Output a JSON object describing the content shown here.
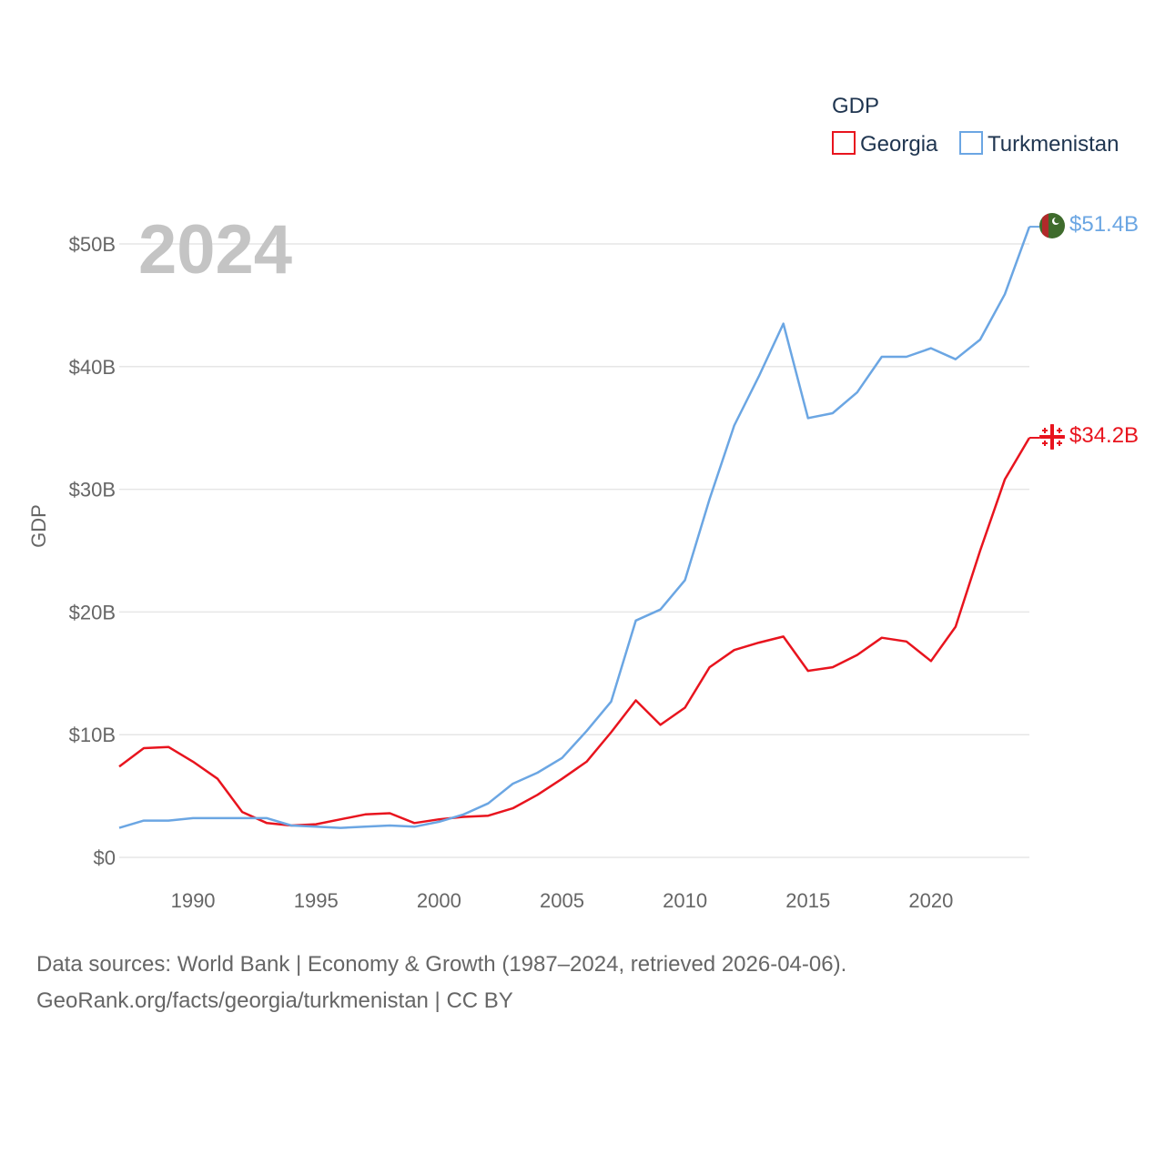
{
  "chart_data": {
    "type": "line",
    "title": "GDP",
    "year_label": "2024",
    "xlabel": "",
    "ylabel": "GDP",
    "xlim": [
      1987,
      2024
    ],
    "ylim": [
      0,
      50
    ],
    "x_ticks": [
      1990,
      1995,
      2000,
      2005,
      2010,
      2015,
      2020
    ],
    "y_ticks": [
      {
        "value": 0,
        "label": "$0"
      },
      {
        "value": 10,
        "label": "$10B"
      },
      {
        "value": 20,
        "label": "$20B"
      },
      {
        "value": 30,
        "label": "$30B"
      },
      {
        "value": 40,
        "label": "$40B"
      },
      {
        "value": 50,
        "label": "$50B"
      }
    ],
    "unit": "billion USD",
    "x": [
      1987,
      1988,
      1989,
      1990,
      1991,
      1992,
      1993,
      1994,
      1995,
      1996,
      1997,
      1998,
      1999,
      2000,
      2001,
      2002,
      2003,
      2004,
      2005,
      2006,
      2007,
      2008,
      2009,
      2010,
      2011,
      2012,
      2013,
      2014,
      2015,
      2016,
      2017,
      2018,
      2019,
      2020,
      2021,
      2022,
      2023,
      2024
    ],
    "series": [
      {
        "name": "Georgia",
        "color": "#e8141e",
        "end_label": "$34.2B",
        "flag": "georgia-flag",
        "values": [
          7.4,
          8.9,
          9.0,
          7.8,
          6.4,
          3.7,
          2.8,
          2.6,
          2.7,
          3.1,
          3.5,
          3.6,
          2.8,
          3.1,
          3.3,
          3.4,
          4.0,
          5.1,
          6.4,
          7.8,
          10.2,
          12.8,
          10.8,
          12.2,
          15.5,
          16.9,
          17.5,
          18.0,
          15.2,
          15.5,
          16.5,
          17.9,
          17.6,
          16.0,
          18.8,
          25.0,
          30.8,
          34.2
        ]
      },
      {
        "name": "Turkmenistan",
        "color": "#6ba6e3",
        "end_label": "$51.4B",
        "flag": "turkmenistan-flag",
        "values": [
          2.4,
          3.0,
          3.0,
          3.2,
          3.2,
          3.2,
          3.2,
          2.6,
          2.5,
          2.4,
          2.5,
          2.6,
          2.5,
          2.9,
          3.5,
          4.4,
          6.0,
          6.9,
          8.1,
          10.3,
          12.7,
          19.3,
          20.2,
          22.6,
          29.2,
          35.2,
          39.2,
          43.5,
          35.8,
          36.2,
          37.9,
          40.8,
          40.8,
          41.5,
          40.6,
          42.2,
          45.9,
          51.4
        ]
      }
    ],
    "legend": {
      "title": "GDP",
      "position": "top-right"
    },
    "grid": true
  },
  "footer": {
    "line1": "Data sources: World Bank | Economy & Growth (1987–2024, retrieved 2026-04-06).",
    "line2": "GeoRank.org/facts/georgia/turkmenistan | CC BY"
  }
}
